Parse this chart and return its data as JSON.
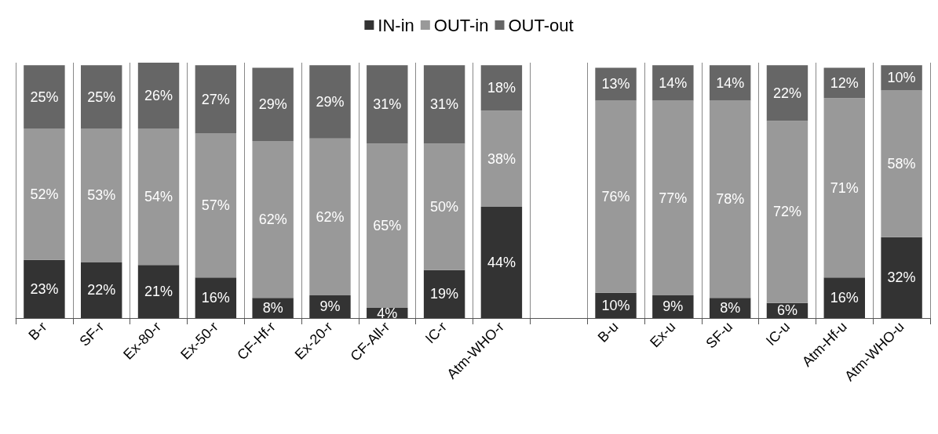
{
  "chart_data": {
    "type": "bar",
    "stacked": true,
    "categories": [
      "B-r",
      "SF-r",
      "Ex-80-r",
      "Ex-50-r",
      "CF-Hf-r",
      "Ex-20-r",
      "CF-All-r",
      "IC-r",
      "Atm-WHO-r",
      null,
      "B-u",
      "Ex-u",
      "SF-u",
      "IC-u",
      "Atm-Hf-u",
      "Atm-WHO-u"
    ],
    "series": [
      {
        "name": "IN-in",
        "color": "#333333",
        "values": [
          23,
          22,
          21,
          16,
          8,
          9,
          4,
          19,
          44,
          null,
          10,
          9,
          8,
          6,
          16,
          32
        ],
        "value_labels": [
          "23%",
          "22%",
          "21%",
          "16%",
          "8%",
          "9%",
          "4%",
          "19%",
          "44%",
          null,
          "10%",
          "9%",
          "8%",
          "6%",
          "16%",
          "32%"
        ]
      },
      {
        "name": "OUT-in",
        "color": "#999999",
        "values": [
          52,
          53,
          54,
          57,
          62,
          62,
          65,
          50,
          38,
          null,
          76,
          77,
          78,
          72,
          71,
          58
        ],
        "value_labels": [
          "52%",
          "53%",
          "54%",
          "57%",
          "62%",
          "62%",
          "65%",
          "50%",
          "38%",
          null,
          "76%",
          "77%",
          "78%",
          "72%",
          "71%",
          "58%"
        ]
      },
      {
        "name": "OUT-out",
        "color": "#666666",
        "values": [
          25,
          25,
          26,
          27,
          29,
          29,
          31,
          31,
          18,
          null,
          13,
          14,
          14,
          22,
          12,
          10
        ],
        "value_labels": [
          "25%",
          "25%",
          "26%",
          "27%",
          "29%",
          "29%",
          "31%",
          "31%",
          "18%",
          null,
          "13%",
          "14%",
          "14%",
          "22%",
          "12%",
          "10%"
        ]
      }
    ],
    "ylim": [
      0,
      101
    ],
    "tick_labels": "x",
    "grid": "x",
    "legend": "top"
  }
}
